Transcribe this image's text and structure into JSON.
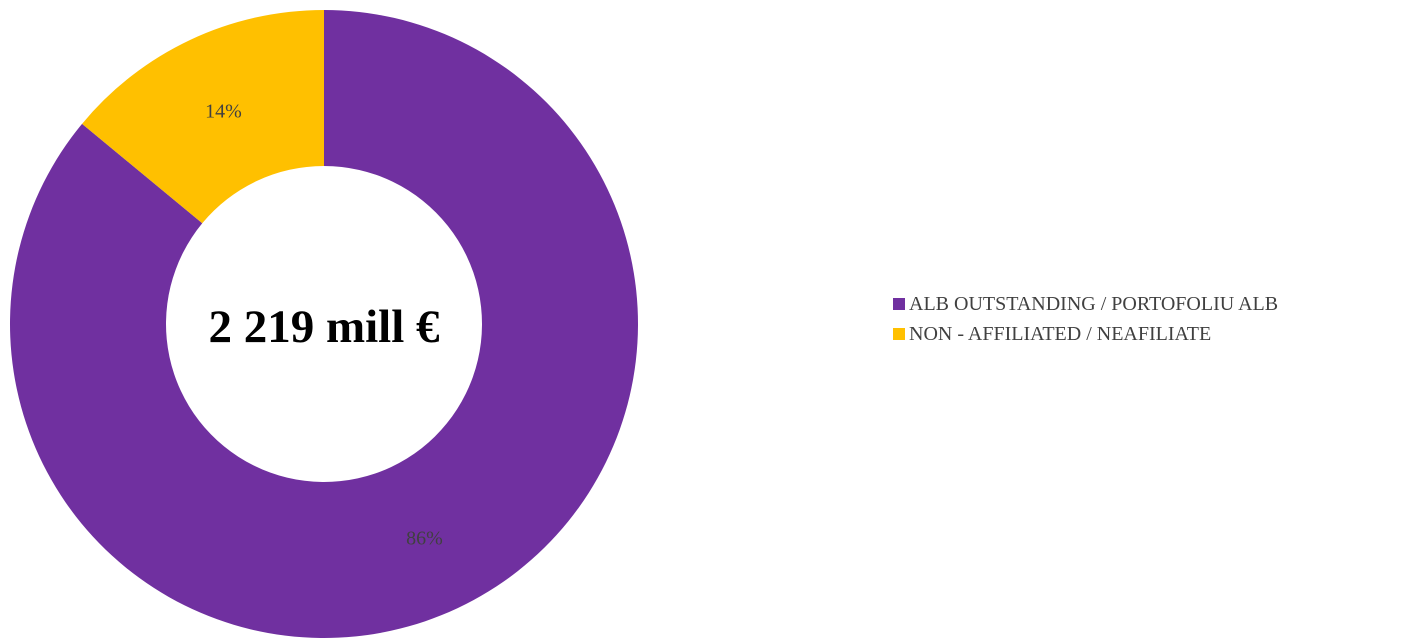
{
  "chart_data": {
    "type": "pie",
    "donut": true,
    "center_label": "2 219 mill €",
    "categories": [
      "ALB OUTSTANDING / PORTOFOLIU ALB",
      "NON - AFFILIATED / NEAFILIATE"
    ],
    "values": [
      86,
      14
    ],
    "data_labels": [
      "86%",
      "14%"
    ],
    "colors": [
      "#7030A0",
      "#FFC000"
    ],
    "legend_placement": "right"
  }
}
